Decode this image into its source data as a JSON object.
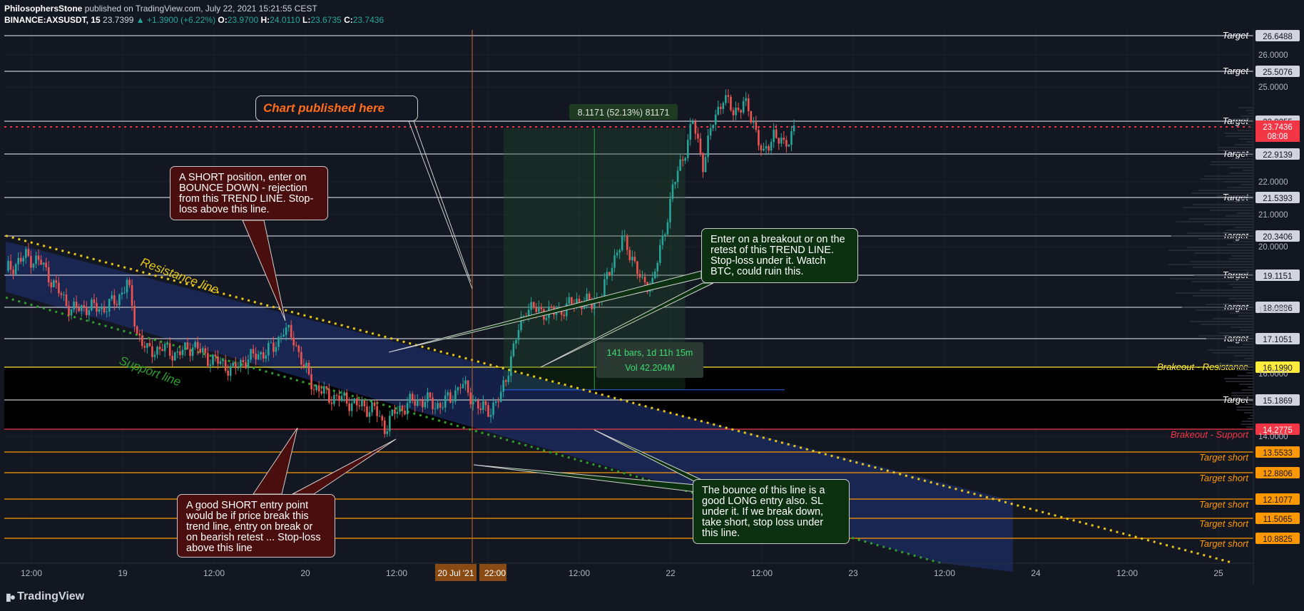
{
  "header": {
    "publisher": "PhilosophersStone",
    "published_text": "published on TradingView.com, July 22, 2021 15:21:55 CEST",
    "symbol": "BINANCE:AXSUSDT, 15",
    "last": "23.7399",
    "change": "▲ +1.3900 (+6.22%)",
    "o_label": "O:",
    "o": "23.9700",
    "h_label": "H:",
    "h": "24.0110",
    "l_label": "L:",
    "l": "23.6735",
    "c_label": "C:",
    "c": "23.7436"
  },
  "footer": {
    "logo": "TradingView",
    "logo_icon": "tradingview-logo-icon"
  },
  "annotations": {
    "published": "Chart published here",
    "short_top": "A SHORT position, enter on BOUNCE DOWN - rejection from this TREND LINE. Stop-loss above this line.",
    "long_top": "Enter on a breakout or on the retest of this TREND LINE. Stop-loss under it. Watch BTC, could ruin this.",
    "short_bottom": "A good SHORT entry point would be if price break this trend line, entry on break or on bearish retest ... Stop-loss above this line",
    "long_bottom": "The bounce of this line is a good LONG entry also. SL under it. If we break down, take short, stop loss under this line."
  },
  "chart_data": {
    "type": "candlestick",
    "symbol": "BINANCE:AXSUSDT",
    "interval": "15",
    "current_price": 23.7436,
    "countdown": "08:08",
    "x_tick_labels": [
      "12:00",
      "19",
      "12:00",
      "20",
      "12:00",
      "20 Jul '21",
      "22:00",
      "12:00",
      "22",
      "12:00",
      "23",
      "12:00",
      "24",
      "12:00",
      "25"
    ],
    "highlighted_x_labels": [
      "20 Jul '21",
      "22:00"
    ],
    "y_tick_labels": [
      26.0,
      25.0,
      22.0,
      21.0,
      20.0,
      18.0,
      16.0,
      14.0
    ],
    "ylim": [
      10.5,
      27.0
    ],
    "price_path": [
      [
        0,
        19.25
      ],
      [
        8,
        19.7
      ],
      [
        14,
        19.5
      ],
      [
        20,
        18.7
      ],
      [
        26,
        18.0
      ],
      [
        32,
        18.1
      ],
      [
        38,
        18.05
      ],
      [
        44,
        18.3
      ],
      [
        48,
        18.9
      ],
      [
        52,
        17.3
      ],
      [
        56,
        16.7
      ],
      [
        62,
        16.8
      ],
      [
        68,
        16.6
      ],
      [
        74,
        16.9
      ],
      [
        80,
        16.5
      ],
      [
        86,
        16.3
      ],
      [
        90,
        16.1
      ],
      [
        94,
        16.4
      ],
      [
        100,
        16.6
      ],
      [
        106,
        16.8
      ],
      [
        110,
        17.4
      ],
      [
        114,
        17.1
      ],
      [
        118,
        16.2
      ],
      [
        122,
        15.6
      ],
      [
        128,
        15.3
      ],
      [
        134,
        15.2
      ],
      [
        140,
        15.0
      ],
      [
        146,
        14.9
      ],
      [
        150,
        14.3
      ],
      [
        154,
        14.8
      ],
      [
        160,
        15.1
      ],
      [
        166,
        15.2
      ],
      [
        170,
        15.0
      ],
      [
        176,
        15.2
      ],
      [
        180,
        15.7
      ],
      [
        184,
        15.3
      ],
      [
        188,
        14.9
      ],
      [
        192,
        14.9
      ],
      [
        196,
        15.3
      ],
      [
        199,
        16.2
      ],
      [
        202,
        17.1
      ],
      [
        206,
        18.1
      ],
      [
        210,
        18.0
      ],
      [
        216,
        17.9
      ],
      [
        220,
        18.0
      ],
      [
        226,
        18.3
      ],
      [
        232,
        18.2
      ],
      [
        236,
        18.5
      ],
      [
        240,
        19.5
      ],
      [
        244,
        20.2
      ],
      [
        248,
        19.7
      ],
      [
        252,
        18.8
      ],
      [
        256,
        18.9
      ],
      [
        260,
        20.2
      ],
      [
        264,
        21.8
      ],
      [
        268,
        22.8
      ],
      [
        272,
        23.9
      ],
      [
        276,
        22.6
      ],
      [
        280,
        23.9
      ],
      [
        284,
        24.7
      ],
      [
        288,
        24.2
      ],
      [
        292,
        24.5
      ],
      [
        296,
        23.9
      ],
      [
        300,
        22.8
      ],
      [
        304,
        23.6
      ],
      [
        308,
        23.1
      ],
      [
        312,
        23.74
      ]
    ],
    "support_zone": [
      16.199,
      14.2775
    ],
    "horizontal_levels": [
      {
        "label": "Target",
        "value": 26.6488
      },
      {
        "label": "Target",
        "value": 25.5076
      },
      {
        "label": "Target",
        "value": 23.9255
      },
      {
        "label": "Target",
        "value": 22.9139
      },
      {
        "label": "Target",
        "value": 21.5393
      },
      {
        "label": "Target",
        "value": 20.3406
      },
      {
        "label": "Target",
        "value": 19.1151
      },
      {
        "label": "Target",
        "value": 18.0886
      },
      {
        "label": "Target",
        "value": 17.1051
      },
      {
        "label": "Brakeout - Resistance",
        "value": 16.199
      },
      {
        "label": "Target",
        "value": 15.1869
      },
      {
        "label": "Brakeout - Support",
        "value": 14.2775
      },
      {
        "label": "Target short",
        "value": 13.5533
      },
      {
        "label": "Target short",
        "value": 12.8806
      },
      {
        "label": "Target short",
        "value": 12.1077
      },
      {
        "label": "Target short",
        "value": 11.5065
      },
      {
        "label": "Target short",
        "value": 10.8825
      }
    ],
    "trend_lines": [
      {
        "label": "Resistance line",
        "from": [
          0,
          20.35
        ],
        "to": [
          486,
          10.6
        ]
      },
      {
        "label": "Support line",
        "from": [
          0,
          18.4
        ],
        "to": [
          370,
          10.6
        ]
      }
    ],
    "measure": {
      "range_text": "8.1171 (52.13%) 81171",
      "bars_text": "141 bars, 1d 11h 15m",
      "vol_text": "Vol 42.204M",
      "from_price": 15.5,
      "to_price": 23.7
    }
  },
  "colors": {
    "background": "#131722",
    "level_white": "#c3c6cf",
    "level_yellow": "#ffeb3b",
    "level_red": "#f23645",
    "level_orange": "#ff9800",
    "resistance_line": "#e6c619",
    "support_line": "#2f9e2f",
    "channel_fill": "#1c2e66",
    "up_candle": "#26a69a",
    "down_candle": "#ef5350",
    "current_price": "#f23645"
  }
}
